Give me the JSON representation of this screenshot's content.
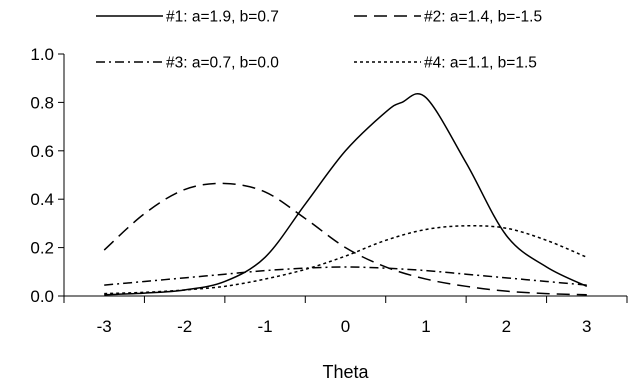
{
  "chart_data": {
    "type": "line",
    "title": "",
    "xlabel": "Theta",
    "ylabel": "",
    "xlim": [
      -3.5,
      3.5
    ],
    "ylim": [
      0,
      1.0
    ],
    "x_ticks": [
      "-3",
      "-2",
      "-1",
      "0",
      "1",
      "2",
      "3"
    ],
    "y_ticks": [
      "0.0",
      "0.2",
      "0.4",
      "0.6",
      "0.8",
      "1.0"
    ],
    "grid": false,
    "legend": "top",
    "series": [
      {
        "name": "#1:  a=1.9, b=0.7",
        "dash": "solid",
        "color": "#000000",
        "x": [
          -3,
          -2.5,
          -2,
          -1.5,
          -1,
          -0.5,
          0,
          0.5,
          0.7,
          1,
          1.5,
          2,
          2.5,
          3
        ],
        "y": [
          0.005,
          0.012,
          0.025,
          0.06,
          0.16,
          0.38,
          0.6,
          0.76,
          0.8,
          0.82,
          0.55,
          0.25,
          0.12,
          0.04
        ]
      },
      {
        "name": "#2:  a=1.4, b=-1.5",
        "dash": "dashed",
        "color": "#000000",
        "x": [
          -3,
          -2.5,
          -2,
          -1.5,
          -1,
          -0.5,
          0,
          0.5,
          1,
          1.5,
          2,
          2.5,
          3
        ],
        "y": [
          0.19,
          0.34,
          0.44,
          0.465,
          0.43,
          0.32,
          0.2,
          0.12,
          0.07,
          0.04,
          0.02,
          0.01,
          0.005
        ]
      },
      {
        "name": "#3:  a=0.7, b=0.0",
        "dash": "dashdot",
        "color": "#000000",
        "x": [
          -3,
          -2.5,
          -2,
          -1.5,
          -1,
          -0.5,
          0,
          0.5,
          1,
          1.5,
          2,
          2.5,
          3
        ],
        "y": [
          0.045,
          0.06,
          0.075,
          0.09,
          0.105,
          0.115,
          0.12,
          0.115,
          0.105,
          0.09,
          0.075,
          0.06,
          0.045
        ]
      },
      {
        "name": "#4:  a=1.1, b=1.5",
        "dash": "dotted",
        "color": "#000000",
        "x": [
          -3,
          -2.5,
          -2,
          -1.5,
          -1,
          -0.5,
          0,
          0.5,
          1,
          1.5,
          2,
          2.5,
          3
        ],
        "y": [
          0.01,
          0.015,
          0.025,
          0.04,
          0.07,
          0.11,
          0.165,
          0.23,
          0.275,
          0.29,
          0.28,
          0.23,
          0.16
        ]
      }
    ]
  }
}
